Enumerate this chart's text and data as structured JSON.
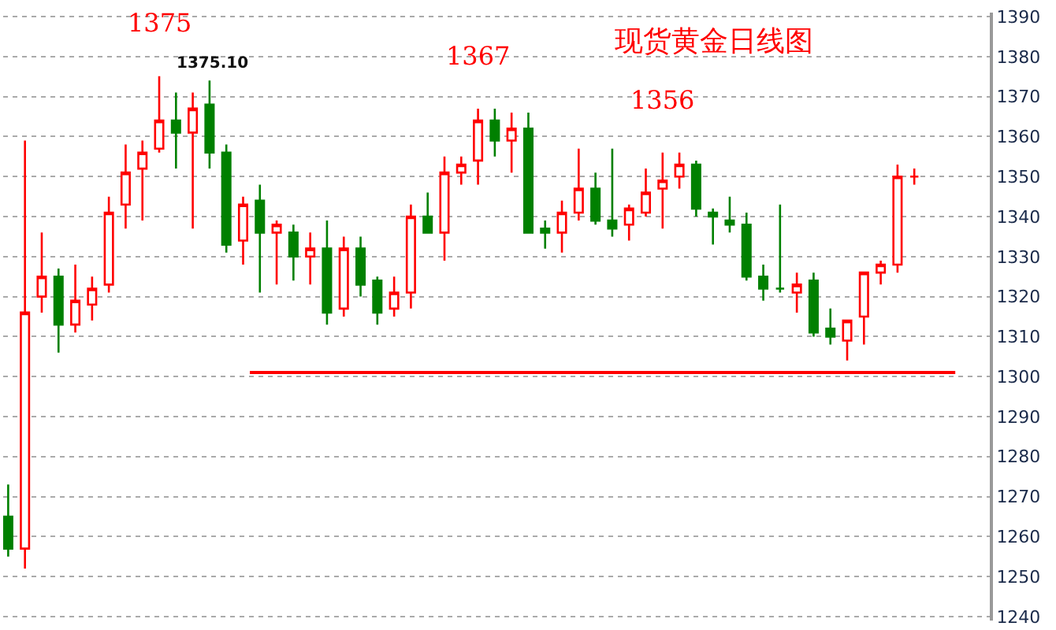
{
  "chart_data": {
    "type": "candlestick",
    "title": "现货黄金日线图",
    "categories": [
      null,
      null,
      null,
      null,
      null,
      null,
      null,
      null,
      null,
      null,
      null,
      null,
      null,
      null,
      null,
      null,
      null,
      null,
      null,
      null,
      null,
      null,
      null,
      null,
      null,
      null,
      null,
      null,
      null,
      null,
      null,
      null,
      null,
      null,
      null,
      null,
      null,
      null,
      null,
      null,
      null,
      null,
      null,
      null,
      null,
      null,
      null,
      null,
      null,
      null,
      null,
      null,
      null,
      null,
      null
    ],
    "ohlc": [
      [
        1265,
        1273,
        1255,
        1257
      ],
      [
        1257,
        1359,
        1252,
        1316
      ],
      [
        1320,
        1336,
        1316,
        1325
      ],
      [
        1325,
        1327,
        1306,
        1313
      ],
      [
        1313,
        1328,
        1311,
        1319
      ],
      [
        1318,
        1325,
        1314,
        1322
      ],
      [
        1323,
        1345,
        1321,
        1341
      ],
      [
        1343,
        1358,
        1337,
        1351
      ],
      [
        1352,
        1359,
        1339,
        1356
      ],
      [
        1357,
        1375.1,
        1356,
        1364
      ],
      [
        1364,
        1371,
        1352,
        1361
      ],
      [
        1361,
        1371,
        1337,
        1367
      ],
      [
        1368,
        1374,
        1352,
        1356
      ],
      [
        1356,
        1358,
        1331,
        1333
      ],
      [
        1334,
        1345,
        1328,
        1343
      ],
      [
        1344,
        1348,
        1321,
        1336
      ],
      [
        1336,
        1339,
        1323,
        1338
      ],
      [
        1336,
        1338,
        1324,
        1330
      ],
      [
        1330,
        1336,
        1323,
        1332
      ],
      [
        1332,
        1339,
        1313,
        1316
      ],
      [
        1317,
        1335,
        1315,
        1332
      ],
      [
        1332,
        1335,
        1320,
        1323
      ],
      [
        1324,
        1325,
        1313,
        1316
      ],
      [
        1317,
        1325,
        1315,
        1321
      ],
      [
        1321,
        1343,
        1317,
        1340
      ],
      [
        1340,
        1346,
        1336,
        1336
      ],
      [
        1336,
        1355,
        1329,
        1351
      ],
      [
        1351,
        1355,
        1348,
        1353
      ],
      [
        1354,
        1367,
        1348,
        1364
      ],
      [
        1364,
        1367,
        1355,
        1359
      ],
      [
        1359,
        1366,
        1351,
        1362
      ],
      [
        1362,
        1366,
        1336,
        1336
      ],
      [
        1337,
        1339,
        1332,
        1336
      ],
      [
        1336,
        1344,
        1331,
        1341
      ],
      [
        1341,
        1357,
        1339,
        1347
      ],
      [
        1347,
        1351,
        1338,
        1339
      ],
      [
        1339,
        1357,
        1335,
        1337
      ],
      [
        1338,
        1343,
        1334,
        1342
      ],
      [
        1341,
        1352,
        1340,
        1346
      ],
      [
        1347,
        1356,
        1337,
        1349
      ],
      [
        1350,
        1356,
        1347,
        1353
      ],
      [
        1353,
        1354,
        1340,
        1342
      ],
      [
        1341,
        1342,
        1333,
        1340
      ],
      [
        1339,
        1345,
        1336,
        1338
      ],
      [
        1338,
        1341,
        1324,
        1325
      ],
      [
        1325,
        1328,
        1319,
        1322
      ],
      [
        1322,
        1343,
        1321,
        1322
      ],
      [
        1321,
        1326,
        1316,
        1323
      ],
      [
        1324,
        1326,
        1310,
        1311
      ],
      [
        1312,
        1317,
        1308,
        1310
      ],
      [
        1309,
        1314,
        1304,
        1314
      ],
      [
        1315,
        1326,
        1308,
        1326
      ],
      [
        1326,
        1329,
        1323,
        1328
      ],
      [
        1328,
        1353,
        1326,
        1350
      ],
      [
        1350,
        1352,
        1348,
        1350
      ]
    ],
    "colors": [
      "#008000",
      "#ff0000",
      "#ff0000",
      "#008000",
      "#ff0000",
      "#ff0000",
      "#ff0000",
      "#ff0000",
      "#ff0000",
      "#ff0000",
      "#008000",
      "#ff0000",
      "#008000",
      "#008000",
      "#ff0000",
      "#008000",
      "#ff0000",
      "#008000",
      "#ff0000",
      "#008000",
      "#ff0000",
      "#008000",
      "#008000",
      "#ff0000",
      "#ff0000",
      "#008000",
      "#ff0000",
      "#ff0000",
      "#ff0000",
      "#008000",
      "#ff0000",
      "#008000",
      "#008000",
      "#ff0000",
      "#ff0000",
      "#008000",
      "#008000",
      "#ff0000",
      "#ff0000",
      "#ff0000",
      "#ff0000",
      "#008000",
      "#008000",
      "#008000",
      "#008000",
      "#008000",
      "#008000",
      "#ff0000",
      "#008000",
      "#008000",
      "#ff0000",
      "#ff0000",
      "#ff0000",
      "#ff0000",
      "#ff0000"
    ],
    "ylim": [
      1239,
      1391
    ],
    "yticks": [
      1240,
      1250,
      1260,
      1270,
      1280,
      1290,
      1300,
      1310,
      1320,
      1330,
      1340,
      1350,
      1360,
      1370,
      1380,
      1390
    ],
    "grid": "y",
    "ref_lines": [
      {
        "axis": "y",
        "value": 1301,
        "color": "#ff0000"
      }
    ],
    "annotations": [
      {
        "text": "1375",
        "y": 1375.1
      },
      {
        "text": "1367",
        "y": 1367
      },
      {
        "text": "1356",
        "y": 1356
      },
      "1375.10"
    ]
  }
}
